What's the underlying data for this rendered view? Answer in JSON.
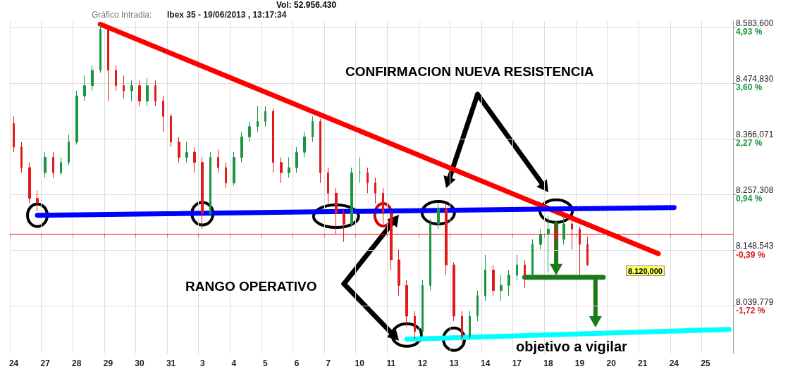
{
  "chart_data": {
    "type": "candlestick",
    "title": "Gráfico Intradia:",
    "subtitle": "Ibex 35 - 19/06/2013 , 13:17:34",
    "categories": [
      "24",
      null,
      null,
      null,
      "27",
      null,
      null,
      null,
      "28",
      null,
      null,
      null,
      "29",
      null,
      null,
      null,
      "30",
      null,
      null,
      null,
      "31",
      null,
      null,
      null,
      "3",
      null,
      null,
      null,
      "4",
      null,
      null,
      null,
      "5",
      null,
      null,
      null,
      "6",
      null,
      null,
      null,
      "7",
      null,
      null,
      null,
      "10",
      null,
      null,
      null,
      "11",
      null,
      null,
      null,
      "12",
      null,
      null,
      null,
      "13",
      null,
      null,
      null,
      "14",
      null,
      null,
      null,
      "17",
      null,
      null,
      null,
      "18",
      null,
      null,
      null,
      "19",
      null,
      null,
      null,
      "20",
      null,
      null,
      null,
      "21",
      null,
      null,
      null,
      "24",
      null,
      null,
      null,
      "25",
      null,
      null,
      null
    ],
    "ohlc": [
      [
        8396,
        8410,
        8340,
        8350
      ],
      [
        8350,
        8360,
        8300,
        8310
      ],
      [
        8310,
        8320,
        8240,
        8250
      ],
      [
        8250,
        8265,
        8225,
        8240
      ],
      [
        8300,
        8340,
        8290,
        8330
      ],
      [
        8330,
        8340,
        8290,
        8300
      ],
      [
        8300,
        8330,
        8295,
        8320
      ],
      [
        8320,
        8375,
        8315,
        8360
      ],
      [
        8360,
        8460,
        8355,
        8450
      ],
      [
        8450,
        8490,
        8440,
        8470
      ],
      [
        8470,
        8510,
        8460,
        8500
      ],
      [
        8500,
        8590,
        8495,
        8580
      ],
      [
        8580,
        8585,
        8440,
        8500
      ],
      [
        8500,
        8510,
        8460,
        8470
      ],
      [
        8470,
        8490,
        8445,
        8460
      ],
      [
        8460,
        8480,
        8440,
        8470
      ],
      [
        8470,
        8480,
        8430,
        8440
      ],
      [
        8440,
        8485,
        8430,
        8470
      ],
      [
        8470,
        8480,
        8430,
        8440
      ],
      [
        8440,
        8450,
        8380,
        8410
      ],
      [
        8410,
        8415,
        8350,
        8360
      ],
      [
        8360,
        8370,
        8320,
        8330
      ],
      [
        8330,
        8360,
        8320,
        8340
      ],
      [
        8340,
        8350,
        8300,
        8320
      ],
      [
        8320,
        8330,
        8190,
        8220
      ],
      [
        8220,
        8340,
        8215,
        8330
      ],
      [
        8330,
        8345,
        8300,
        8310
      ],
      [
        8310,
        8320,
        8270,
        8280
      ],
      [
        8280,
        8340,
        8275,
        8330
      ],
      [
        8330,
        8380,
        8320,
        8370
      ],
      [
        8370,
        8400,
        8360,
        8390
      ],
      [
        8390,
        8430,
        8380,
        8400
      ],
      [
        8400,
        8430,
        8390,
        8420
      ],
      [
        8420,
        8425,
        8300,
        8320
      ],
      [
        8320,
        8330,
        8280,
        8300
      ],
      [
        8300,
        8330,
        8290,
        8310
      ],
      [
        8310,
        8350,
        8300,
        8340
      ],
      [
        8340,
        8380,
        8330,
        8370
      ],
      [
        8370,
        8410,
        8360,
        8400
      ],
      [
        8400,
        8405,
        8280,
        8300
      ],
      [
        8300,
        8310,
        8240,
        8260
      ],
      [
        8260,
        8270,
        8180,
        8220
      ],
      [
        8220,
        8230,
        8165,
        8200
      ],
      [
        8200,
        8310,
        8195,
        8300
      ],
      [
        8300,
        8330,
        8280,
        8300
      ],
      [
        8300,
        8310,
        8260,
        8280
      ],
      [
        8280,
        8290,
        8240,
        8260
      ],
      [
        8260,
        8270,
        8200,
        8220
      ],
      [
        8220,
        8225,
        8110,
        8130
      ],
      [
        8130,
        8150,
        8060,
        8080
      ],
      [
        8080,
        8090,
        8000,
        8020
      ],
      [
        8020,
        8030,
        7975,
        7990
      ],
      [
        7990,
        8090,
        7980,
        8080
      ],
      [
        8080,
        8210,
        8070,
        8200
      ],
      [
        8200,
        8240,
        8190,
        8230
      ],
      [
        8230,
        8240,
        8100,
        8120
      ],
      [
        8120,
        8125,
        8010,
        8020
      ],
      [
        8020,
        8030,
        7968,
        7980
      ],
      [
        7980,
        8030,
        7975,
        8020
      ],
      [
        8020,
        8070,
        8010,
        8060
      ],
      [
        8060,
        8140,
        8050,
        8110
      ],
      [
        8110,
        8120,
        8060,
        8070
      ],
      [
        8070,
        8100,
        8050,
        8080
      ],
      [
        8080,
        8110,
        8060,
        8100
      ],
      [
        8100,
        8140,
        8090,
        8120
      ],
      [
        8120,
        8130,
        8075,
        8100
      ],
      [
        8100,
        8170,
        8095,
        8160
      ],
      [
        8160,
        8190,
        8150,
        8180
      ],
      [
        8180,
        8215,
        8105,
        8190
      ],
      [
        8190,
        8200,
        8150,
        8170
      ],
      [
        8170,
        8215,
        8160,
        8200
      ],
      [
        8200,
        8210,
        8150,
        8190
      ],
      [
        8190,
        8195,
        8100,
        8160
      ],
      [
        8160,
        8175,
        8118,
        8120
      ],
      null,
      null,
      null,
      null,
      null,
      null,
      null,
      null,
      null,
      null,
      null,
      null,
      null,
      null,
      null,
      null,
      null,
      null
    ],
    "series": [
      {
        "type": "line",
        "color": "#ff0000",
        "values": [
          null,
          null,
          null,
          null,
          null,
          null,
          null,
          null,
          null,
          null,
          null,
          8590,
          null,
          null,
          null,
          null,
          null,
          null,
          null,
          null,
          null,
          null,
          null,
          null,
          null,
          null,
          null,
          null,
          null,
          null,
          null,
          null,
          null,
          null,
          null,
          null,
          null,
          null,
          null,
          null,
          null,
          null,
          null,
          null,
          null,
          null,
          null,
          null,
          null,
          null,
          null,
          null,
          null,
          null,
          null,
          null,
          null,
          null,
          null,
          null,
          null,
          null,
          null,
          null,
          null,
          null,
          null,
          null,
          null,
          null,
          null,
          null,
          null,
          null,
          null,
          null,
          null,
          null,
          null,
          null,
          null,
          null,
          8142,
          null,
          null,
          null,
          null,
          null,
          null,
          null,
          null,
          null
        ]
      },
      {
        "type": "line",
        "color": "#0000ff",
        "values": [
          null,
          null,
          null,
          8217,
          null,
          null,
          null,
          null,
          null,
          null,
          null,
          null,
          null,
          null,
          null,
          null,
          null,
          null,
          null,
          null,
          null,
          null,
          null,
          null,
          null,
          null,
          null,
          null,
          null,
          null,
          null,
          null,
          null,
          null,
          null,
          null,
          null,
          null,
          null,
          null,
          null,
          null,
          null,
          null,
          null,
          null,
          null,
          null,
          null,
          null,
          null,
          null,
          null,
          null,
          null,
          null,
          null,
          null,
          null,
          null,
          null,
          null,
          null,
          null,
          null,
          null,
          null,
          null,
          null,
          null,
          null,
          null,
          null,
          null,
          null,
          null,
          null,
          null,
          null,
          null,
          null,
          null,
          null,
          null,
          8232,
          null,
          null,
          null,
          null,
          null,
          null,
          null
        ]
      },
      {
        "type": "line",
        "color": "#00ffff",
        "values": [
          null,
          null,
          null,
          null,
          null,
          null,
          null,
          null,
          null,
          null,
          null,
          null,
          null,
          null,
          null,
          null,
          null,
          null,
          null,
          null,
          null,
          null,
          null,
          null,
          null,
          null,
          null,
          null,
          null,
          null,
          null,
          null,
          null,
          null,
          null,
          null,
          null,
          null,
          null,
          null,
          null,
          null,
          null,
          null,
          null,
          null,
          null,
          null,
          null,
          null,
          7975,
          null,
          null,
          null,
          null,
          null,
          null,
          null,
          null,
          null,
          null,
          null,
          null,
          null,
          null,
          null,
          null,
          null,
          null,
          null,
          null,
          null,
          null,
          null,
          null,
          null,
          null,
          null,
          null,
          null,
          null,
          null,
          null,
          null,
          null,
          null,
          null,
          null,
          null,
          null,
          null,
          7994
        ]
      },
      {
        "type": "line",
        "color": "#1a7a1a",
        "values": [
          null,
          null,
          null,
          null,
          null,
          null,
          null,
          null,
          null,
          null,
          null,
          null,
          null,
          null,
          null,
          null,
          null,
          null,
          null,
          null,
          null,
          null,
          null,
          null,
          null,
          null,
          null,
          null,
          null,
          null,
          null,
          null,
          null,
          null,
          null,
          null,
          null,
          null,
          null,
          null,
          null,
          null,
          null,
          null,
          null,
          null,
          null,
          null,
          null,
          null,
          null,
          null,
          null,
          null,
          null,
          null,
          null,
          null,
          null,
          null,
          null,
          null,
          null,
          null,
          null,
          8096,
          null,
          null,
          null,
          null,
          null,
          null,
          null,
          null,
          null,
          8096,
          null,
          null,
          null,
          null,
          null,
          null,
          null,
          null,
          null,
          null,
          null,
          null,
          null,
          null,
          null,
          null
        ]
      }
    ],
    "ylim": [
      7947,
      8596
    ],
    "yticks": [
      {
        "value": 8583.6,
        "label": "8.583,600"
      },
      {
        "value": 8474.83,
        "label": "8.474,830"
      },
      {
        "value": 8366.071,
        "label": "8.366,071"
      },
      {
        "value": 8257.308,
        "label": "8.257,308"
      },
      {
        "value": 8148.543,
        "label": "8.148,543"
      },
      {
        "value": 8039.779,
        "label": "8.039,779"
      }
    ],
    "y2lim": [
      -2.85,
      5.08
    ],
    "y2ticks": [
      {
        "value": 4.93,
        "label": "4,93 %"
      },
      {
        "value": 3.6,
        "label": "3,60 %"
      },
      {
        "value": 2.27,
        "label": "2,27 %"
      },
      {
        "value": 0.94,
        "label": "0,94 %"
      },
      {
        "value": -0.39,
        "label": "-0,39 %"
      },
      {
        "value": -1.72,
        "label": "-1,72 %"
      }
    ],
    "ref_lines": [
      {
        "axis": "y",
        "value": 8180,
        "color": "#ff0000"
      }
    ],
    "annotations": [
      "Vol: 52.956.430",
      "CONFIRMACION NUEVA RESISTENCIA",
      "RANGO OPERATIVO",
      "objetivo a vigilar",
      "8.120,000"
    ],
    "grid": true,
    "line_style": "solid"
  }
}
